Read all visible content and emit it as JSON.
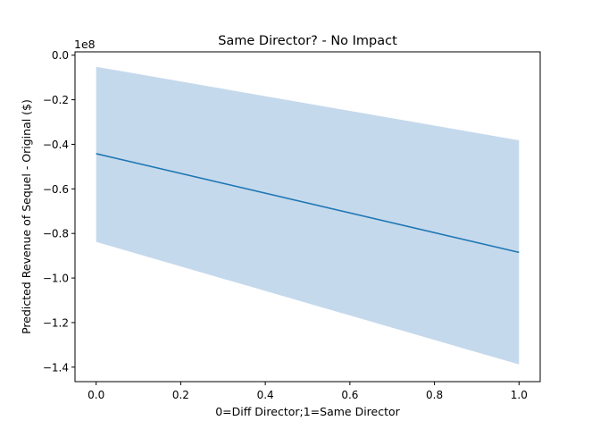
{
  "chart_data": {
    "type": "line",
    "title": "Same Director? - No Impact",
    "xlabel": "0=Diff Director;1=Same Director",
    "ylabel": "Predicted Revenue of Sequel - Original ($)",
    "y_offset_label": "1e8",
    "xlim": [
      -0.05,
      1.05
    ],
    "ylim": [
      -1.465,
      0.015
    ],
    "xticks": [
      0.0,
      0.2,
      0.4,
      0.6,
      0.8,
      1.0
    ],
    "xtick_labels": [
      "0.0",
      "0.2",
      "0.4",
      "0.6",
      "0.8",
      "1.0"
    ],
    "yticks": [
      0.0,
      -0.2,
      -0.4,
      -0.6,
      -0.8,
      -1.0,
      -1.2,
      -1.4
    ],
    "ytick_labels": [
      "0.0",
      "−0.2",
      "−0.4",
      "−0.6",
      "−0.8",
      "−1.0",
      "−1.2",
      "−1.4"
    ],
    "grid": false,
    "series": [
      {
        "x": [
          0.0,
          1.0
        ],
        "values": [
          -0.442,
          -0.885
        ],
        "lower": [
          -0.838,
          -1.388
        ],
        "upper": [
          -0.052,
          -0.382
        ],
        "color": "#1f77b4",
        "band_color": "#c5d9ec"
      }
    ]
  }
}
